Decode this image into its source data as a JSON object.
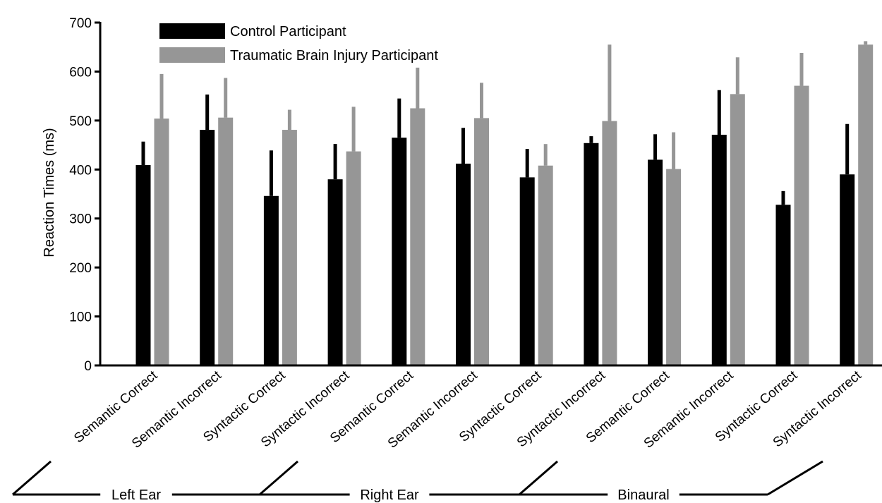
{
  "chart_data": {
    "type": "bar",
    "ylabel": "Reaction Times (ms)",
    "ylim": [
      0,
      700
    ],
    "yticks": [
      0,
      100,
      200,
      300,
      400,
      500,
      600,
      700
    ],
    "legend_position": "top-left",
    "grid": false,
    "categories": [
      "Semantic Correct",
      "Semantic Incorrect",
      "Syntactic Correct",
      "Syntactic Incorrect",
      "Semantic Correct",
      "Semantic Incorrect",
      "Syntactic Correct",
      "Syntactic Incorrect",
      "Semantic Correct",
      "Semantic Incorrect",
      "Syntactic Correct",
      "Syntactic Incorrect"
    ],
    "groups": [
      {
        "label": "Left Ear",
        "start": 0,
        "end": 3
      },
      {
        "label": "Right Ear",
        "start": 4,
        "end": 7
      },
      {
        "label": "Binaural",
        "start": 8,
        "end": 11
      }
    ],
    "series": [
      {
        "name": "Control Participant",
        "color": "#000000",
        "values": [
          409,
          481,
          346,
          380,
          465,
          412,
          384,
          454,
          420,
          471,
          328,
          390
        ],
        "error": [
          48,
          72,
          93,
          72,
          80,
          73,
          58,
          14,
          52,
          91,
          28,
          103
        ]
      },
      {
        "name": "Traumatic Brain Injury Participant",
        "color": "#969696",
        "values": [
          504,
          506,
          481,
          437,
          525,
          505,
          408,
          499,
          401,
          554,
          571,
          655
        ],
        "error": [
          91,
          81,
          41,
          91,
          83,
          72,
          44,
          156,
          75,
          75,
          67,
          7
        ]
      }
    ]
  }
}
